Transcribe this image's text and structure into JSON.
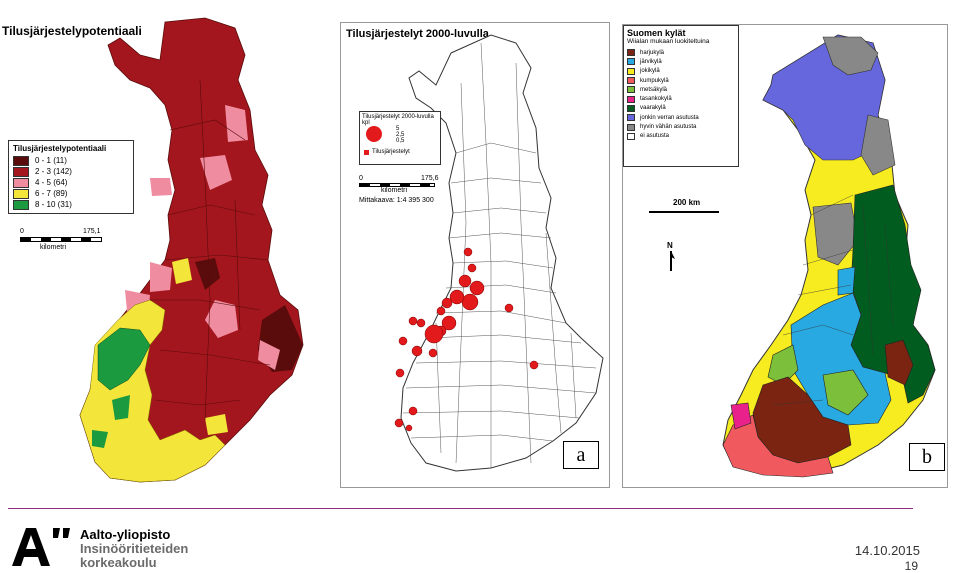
{
  "map1": {
    "title": "Tilusjärjestelypotentiaali",
    "legend_title": "Tilusjärjestelypotentiaali",
    "legend": [
      {
        "label": "0 - 1  (11)",
        "color": "#5a0b0b"
      },
      {
        "label": "2 - 3  (142)",
        "color": "#a4161d"
      },
      {
        "label": "4 - 5  (64)",
        "color": "#ef8ca0"
      },
      {
        "label": "6 - 7  (89)",
        "color": "#f4e53a"
      },
      {
        "label": "8 - 10  (31)",
        "color": "#1b9a3f"
      }
    ],
    "scale_left": "0",
    "scale_right": "175,1",
    "scale_unit": "kilometri"
  },
  "map2": {
    "title": "Tilusjärjestelyt 2000-luvulla",
    "inset_title": "Tilusjärjestelyt 2000-luvulla kpl",
    "inset_values": [
      "5",
      "2,5",
      "0,5"
    ],
    "inset_note": "Tilusjärjestelyt",
    "scale_left": "0",
    "scale_right": "175,6",
    "scale_unit": "kilometri",
    "scale_ratio": "Mittakaava: 1:4 395 300",
    "box_label": "a",
    "dot_color": "#e31a1c"
  },
  "map3": {
    "title": "Suomen kylät",
    "subtitle": "Wiialan mukaan luokiteltuina",
    "legend": [
      {
        "label": "harjukylä",
        "color": "#7b2411"
      },
      {
        "label": "järvikylä",
        "color": "#29a9e1"
      },
      {
        "label": "jokikylä",
        "color": "#f7ec1f"
      },
      {
        "label": "kumpukylä",
        "color": "#f05a5f"
      },
      {
        "label": "metsäkylä",
        "color": "#7cbf3b"
      },
      {
        "label": "tasankokylä",
        "color": "#e8228a"
      },
      {
        "label": "vaarakylä",
        "color": "#005c1f"
      },
      {
        "label": "jonkin verran asutusta",
        "color": "#6666dd"
      },
      {
        "label": "hyvin vähän asutusta",
        "color": "#888888"
      },
      {
        "label": "ei asutusta",
        "color": "#ffffff"
      }
    ],
    "scale_text": "200 km",
    "north_label": "N",
    "box_label": "b"
  },
  "footer": {
    "university": "Aalto-yliopisto",
    "school_line1": "Insinööritieteiden",
    "school_line2": "korkeakoulu",
    "date": "14.10.2015",
    "page": "19",
    "accent": "#8e2c7d"
  }
}
